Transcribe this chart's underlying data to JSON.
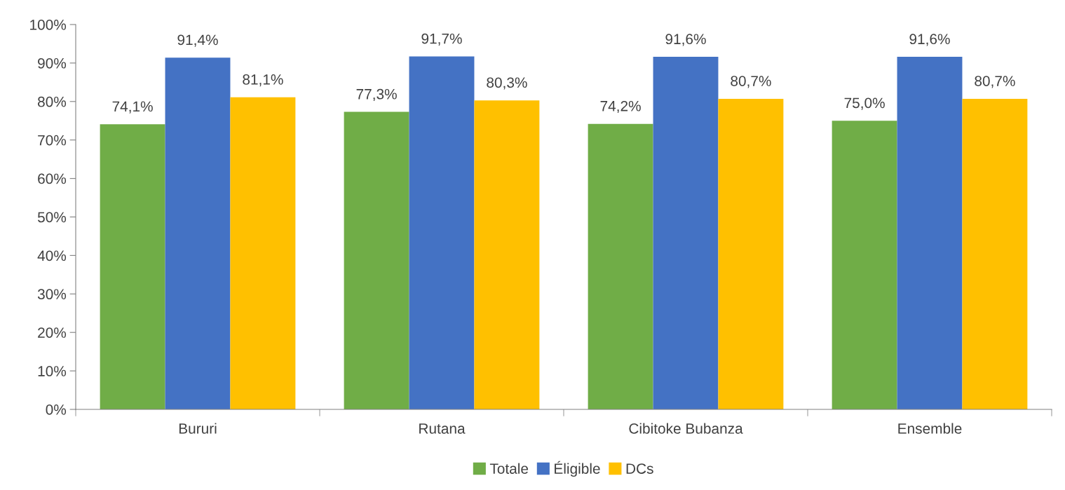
{
  "chart_data": {
    "type": "bar",
    "categories": [
      "Bururi",
      "Rutana",
      "Cibitoke Bubanza",
      "Ensemble"
    ],
    "series": [
      {
        "name": "Totale",
        "color": "#70ad47",
        "values": [
          74.1,
          77.3,
          74.2,
          75.0
        ],
        "value_labels": [
          "74,1%",
          "77,3%",
          "74,2%",
          "75,0%"
        ]
      },
      {
        "name": "Éligible",
        "color": "#4472c4",
        "values": [
          91.4,
          91.7,
          91.6,
          91.6
        ],
        "value_labels": [
          "91,4%",
          "91,7%",
          "91,6%",
          "91,6%"
        ]
      },
      {
        "name": "DCs",
        "color": "#ffc000",
        "values": [
          81.1,
          80.3,
          80.7,
          80.7
        ],
        "value_labels": [
          "81,1%",
          "80,3%",
          "80,7%",
          "80,7%"
        ]
      }
    ],
    "ylim": [
      0,
      100
    ],
    "yticks": [
      {
        "value": 0,
        "label": "0%"
      },
      {
        "value": 10,
        "label": "10%"
      },
      {
        "value": 20,
        "label": "20%"
      },
      {
        "value": 30,
        "label": "30%"
      },
      {
        "value": 40,
        "label": "40%"
      },
      {
        "value": 50,
        "label": "50%"
      },
      {
        "value": 60,
        "label": "60%"
      },
      {
        "value": 70,
        "label": "70%"
      },
      {
        "value": 80,
        "label": "80%"
      },
      {
        "value": 90,
        "label": "90%"
      },
      {
        "value": 100,
        "label": "100%"
      }
    ],
    "grid": false,
    "legend": "bottom"
  }
}
